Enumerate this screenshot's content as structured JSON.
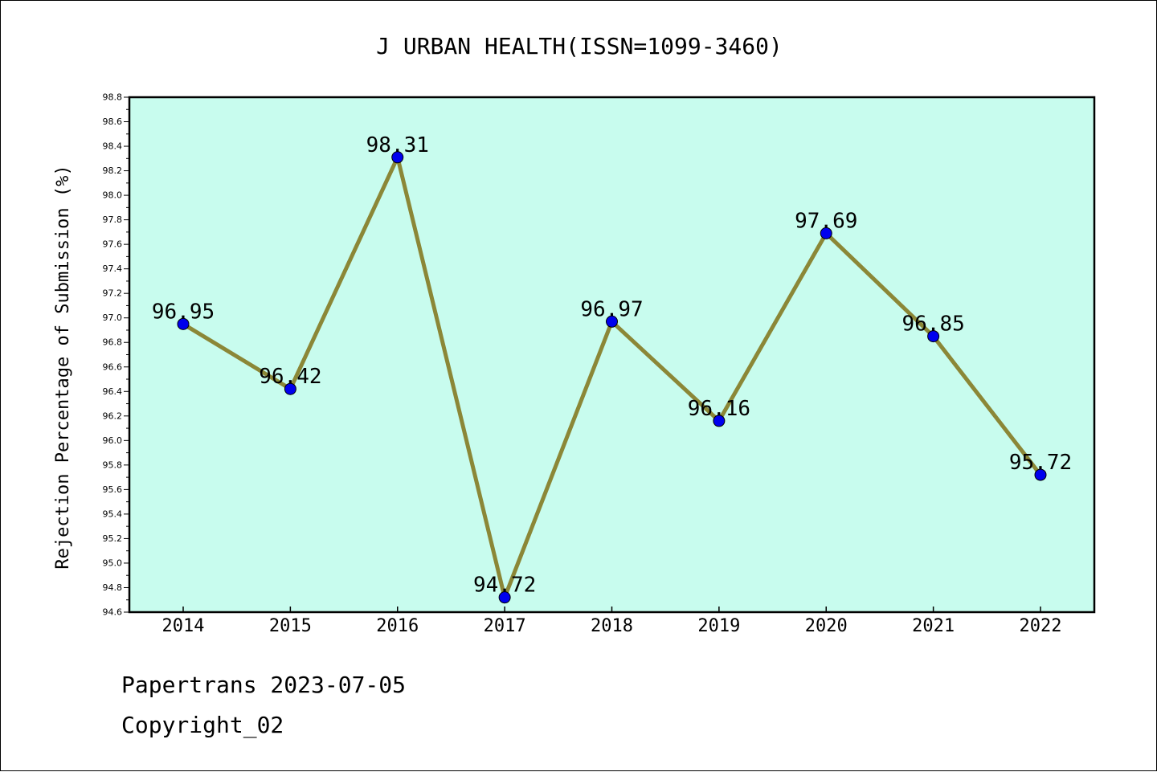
{
  "chart_data": {
    "type": "line",
    "title": "J URBAN HEALTH(ISSN=1099-3460)",
    "xlabel": "",
    "ylabel": "Rejection Percentage of Submission (%)",
    "x": [
      "2014",
      "2015",
      "2016",
      "2017",
      "2018",
      "2019",
      "2020",
      "2021",
      "2022"
    ],
    "series": [
      {
        "values": [
          96.95,
          96.42,
          98.31,
          94.72,
          96.97,
          96.16,
          97.69,
          96.85,
          95.72
        ]
      }
    ],
    "data_labels": [
      "96.95",
      "96.42",
      "98.31",
      "94.72",
      "96.97",
      "96.16",
      "97.69",
      "96.85",
      "95.72"
    ],
    "ylim": [
      94.6,
      98.8
    ],
    "yticks": [
      "94.6",
      "94.8",
      "95.0",
      "95.2",
      "95.4",
      "95.6",
      "95.8",
      "96.0",
      "96.2",
      "96.4",
      "96.6",
      "96.8",
      "97.0",
      "97.2",
      "97.4",
      "97.6",
      "97.8",
      "98.0",
      "98.2",
      "98.4",
      "98.6",
      "98.8"
    ],
    "grid": false,
    "legend": "none",
    "colors": {
      "plot_bg": "#c8fcee",
      "line": "#8b8737",
      "marker": "#0000ee"
    }
  },
  "footer": {
    "line1": "Papertrans 2023-07-05",
    "line2": "Copyright_02"
  }
}
